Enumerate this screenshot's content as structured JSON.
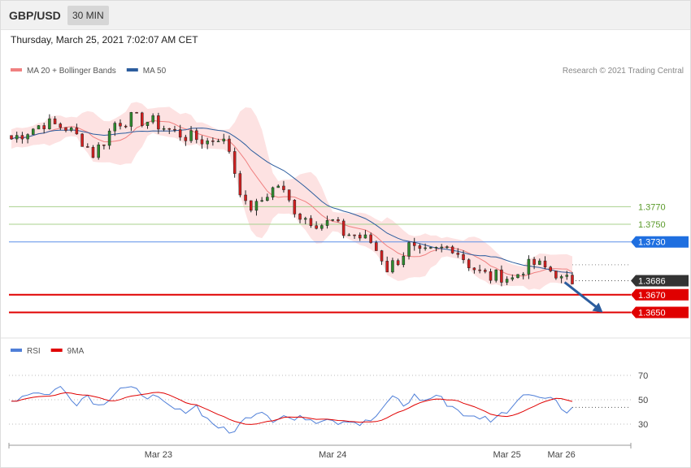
{
  "header": {
    "symbol": "GBP/USD",
    "interval": "30 MIN"
  },
  "timestamp": "Thursday, March 25, 2021 7:02:07 AM CET",
  "legend": [
    {
      "label": "MA 20 + Bollinger Bands",
      "color": "#f08080"
    },
    {
      "label": "MA 50",
      "color": "#2c5d9e"
    }
  ],
  "credit": "Research © 2021 Trading Central",
  "rsi_legend": [
    {
      "label": "RSI",
      "color": "#4f7fd8"
    },
    {
      "label": "9MA",
      "color": "#e00000"
    }
  ],
  "chart_data": [
    {
      "type": "candlestick",
      "y_range": [
        1.3632,
        1.3905
      ],
      "bar_count": 104,
      "last_price": 1.3686,
      "x_ticks": [
        {
          "label": "Mar 23",
          "bar": 27
        },
        {
          "label": "Mar 24",
          "bar": 59
        },
        {
          "label": "Mar 25",
          "bar": 91
        },
        {
          "label": "Mar 26",
          "bar": 101
        }
      ],
      "levels": [
        {
          "label": "1.3770",
          "value": 1.377,
          "kind": "resistance",
          "color": "#7ab648"
        },
        {
          "label": "1.3750",
          "value": 1.375,
          "kind": "resistance",
          "color": "#7ab648"
        },
        {
          "label": "1.3730",
          "value": 1.373,
          "kind": "pivot",
          "color": "#1f6fe0"
        },
        {
          "label": "1.3686",
          "value": 1.3686,
          "kind": "last",
          "color": "#333333"
        },
        {
          "label": "1.3670",
          "value": 1.367,
          "kind": "support",
          "color": "#e00000"
        },
        {
          "label": "1.3650",
          "value": 1.365,
          "kind": "support",
          "color": "#e00000"
        }
      ],
      "arrow": {
        "from_bar": 101,
        "from_value": 1.3686,
        "to_bar": 108,
        "to_value": 1.365,
        "color": "#2c5d9e"
      },
      "series": [
        {
          "name": "MA 20 + Bollinger Bands",
          "color": "#f08080"
        },
        {
          "name": "MA 50",
          "color": "#2c5d9e"
        }
      ],
      "anchors": [
        [
          0,
          1.3847
        ],
        [
          6,
          1.3865
        ],
        [
          10,
          1.386
        ],
        [
          13,
          1.3845
        ],
        [
          15,
          1.383
        ],
        [
          17,
          1.3845
        ],
        [
          19,
          1.3865
        ],
        [
          22,
          1.387
        ],
        [
          26,
          1.3866
        ],
        [
          29,
          1.3857
        ],
        [
          32,
          1.385
        ],
        [
          36,
          1.3844
        ],
        [
          38,
          1.385
        ],
        [
          40,
          1.3835
        ],
        [
          41,
          1.381
        ],
        [
          42,
          1.379
        ],
        [
          43,
          1.377
        ],
        [
          45,
          1.377
        ],
        [
          47,
          1.3785
        ],
        [
          49,
          1.3795
        ],
        [
          51,
          1.3775
        ],
        [
          53,
          1.376
        ],
        [
          55,
          1.3755
        ],
        [
          57,
          1.375
        ],
        [
          59,
          1.3753
        ],
        [
          61,
          1.374
        ],
        [
          63,
          1.3738
        ],
        [
          66,
          1.373
        ],
        [
          68,
          1.3712
        ],
        [
          69,
          1.37
        ],
        [
          71,
          1.371
        ],
        [
          73,
          1.3725
        ],
        [
          75,
          1.3715
        ],
        [
          77,
          1.3718
        ],
        [
          79,
          1.3722
        ],
        [
          81,
          1.3725
        ],
        [
          83,
          1.3712
        ],
        [
          84,
          1.3705
        ],
        [
          86,
          1.3695
        ],
        [
          88,
          1.369
        ],
        [
          90,
          1.3692
        ],
        [
          92,
          1.3688
        ],
        [
          94,
          1.37
        ],
        [
          96,
          1.3705
        ],
        [
          98,
          1.37
        ],
        [
          100,
          1.3695
        ],
        [
          101,
          1.3686
        ]
      ],
      "rsi": {
        "y_range": [
          18,
          82
        ],
        "ticks": [
          70,
          50,
          30
        ],
        "anchors": [
          [
            0,
            49
          ],
          [
            4,
            57
          ],
          [
            6,
            54
          ],
          [
            9,
            60
          ],
          [
            12,
            48
          ],
          [
            14,
            54
          ],
          [
            16,
            45
          ],
          [
            18,
            52
          ],
          [
            20,
            60
          ],
          [
            23,
            57
          ],
          [
            26,
            52
          ],
          [
            29,
            44
          ],
          [
            31,
            40
          ],
          [
            34,
            45
          ],
          [
            36,
            34
          ],
          [
            38,
            28
          ],
          [
            40,
            22
          ],
          [
            42,
            30
          ],
          [
            44,
            38
          ],
          [
            46,
            42
          ],
          [
            48,
            34
          ],
          [
            50,
            37
          ],
          [
            52,
            33
          ],
          [
            54,
            36
          ],
          [
            56,
            33
          ],
          [
            58,
            36
          ],
          [
            60,
            32
          ],
          [
            62,
            34
          ],
          [
            64,
            30
          ],
          [
            66,
            33
          ],
          [
            68,
            40
          ],
          [
            70,
            54
          ],
          [
            72,
            45
          ],
          [
            74,
            53
          ],
          [
            76,
            49
          ],
          [
            78,
            54
          ],
          [
            80,
            47
          ],
          [
            82,
            42
          ],
          [
            84,
            35
          ],
          [
            86,
            36
          ],
          [
            88,
            34
          ],
          [
            90,
            38
          ],
          [
            92,
            45
          ],
          [
            94,
            57
          ],
          [
            96,
            52
          ],
          [
            98,
            54
          ],
          [
            100,
            50
          ],
          [
            101,
            42
          ]
        ]
      }
    }
  ]
}
